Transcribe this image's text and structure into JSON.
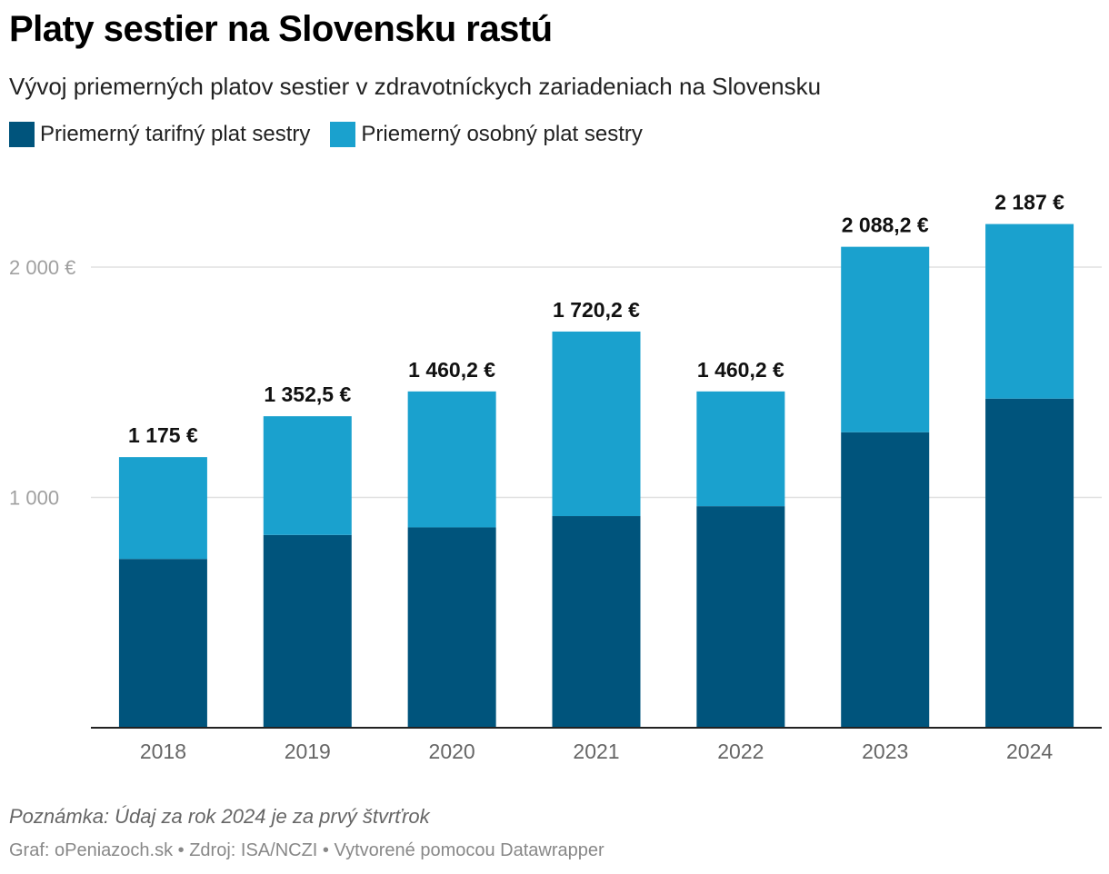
{
  "title": "Platy sestier na Slovensku rastú",
  "subtitle": "Vývoj priemerných platov sestier v zdravotníckych zariadeniach na Slovensku",
  "legend": [
    {
      "label": "Priemerný tarifný plat sestry",
      "color": "#00547c"
    },
    {
      "label": "Priemerný osobný plat sestry",
      "color": "#1aa1ce"
    }
  ],
  "note": "Poznámka: Údaj za rok 2024 je za prvý štvrťrok",
  "footer": {
    "graf": "Graf: oPeniazoch.sk",
    "source": "Zdroj: ISA/NCZI",
    "made_with": "Vytvorené pomocou Datawrapper",
    "separator": " • "
  },
  "chart_data": {
    "type": "bar",
    "stacked": true,
    "categories": [
      "2018",
      "2019",
      "2020",
      "2021",
      "2022",
      "2023",
      "2024"
    ],
    "series": [
      {
        "name": "Priemerný tarifný plat sestry",
        "color": "#00547c",
        "values": [
          733,
          837,
          870,
          919,
          962,
          1283,
          1429
        ]
      },
      {
        "name": "Priemerný osobný plat sestry",
        "color": "#1aa1ce",
        "values": [
          442,
          515.5,
          590.2,
          801.2,
          498.2,
          805.2,
          758
        ]
      }
    ],
    "totals": [
      1175,
      1352.5,
      1460.2,
      1720.2,
      1460.2,
      2088.2,
      2187
    ],
    "total_labels": [
      "1 175 €",
      "1 352,5 €",
      "1 460,2 €",
      "1 720,2 €",
      "1 460,2 €",
      "2 088,2 €",
      "2 187 €"
    ],
    "yticks": [
      {
        "value": 1000,
        "label": "1 000"
      },
      {
        "value": 2000,
        "label": "2 000 €"
      }
    ],
    "ylim": [
      0,
      2400
    ],
    "gridlines": true
  }
}
